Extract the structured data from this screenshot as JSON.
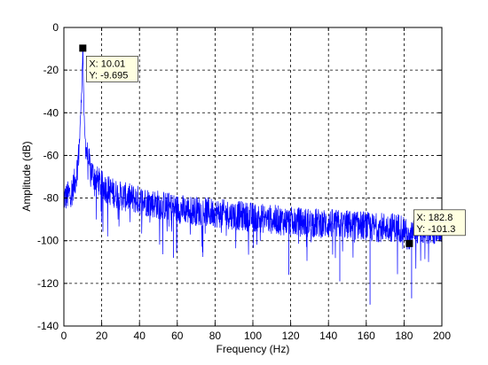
{
  "chart_data": {
    "type": "line",
    "title": "",
    "xlabel": "Frequency (Hz)",
    "ylabel": "Amplitude (dB)",
    "xlim": [
      0,
      200
    ],
    "ylim": [
      -140,
      0
    ],
    "xticks": [
      0,
      20,
      40,
      60,
      80,
      100,
      120,
      140,
      160,
      180,
      200
    ],
    "yticks": [
      0,
      -20,
      -40,
      -60,
      -80,
      -100,
      -120,
      -140
    ],
    "grid": true,
    "grid_style": "dashed",
    "series_color": "#0000ff",
    "series": [
      {
        "x": [
          0,
          2,
          4,
          6,
          7,
          8,
          8.5,
          9,
          9.5,
          10.01,
          10.5,
          11,
          12,
          13,
          14,
          16,
          18,
          20,
          25,
          30,
          35,
          40,
          50,
          60,
          70,
          80,
          90,
          100,
          110,
          120,
          130,
          140,
          150,
          160,
          162,
          170,
          180,
          182.8,
          185,
          190,
          195,
          200
        ],
        "y": [
          -80,
          -79,
          -77,
          -72,
          -66,
          -58,
          -48,
          -38,
          -28,
          -9.695,
          -34,
          -50,
          -58,
          -62,
          -66,
          -70,
          -72,
          -74,
          -77,
          -79,
          -80,
          -81,
          -83,
          -85,
          -86,
          -87,
          -88,
          -89,
          -90,
          -91,
          -91.5,
          -92,
          -92.5,
          -93,
          -94,
          -93.5,
          -94,
          -101.3,
          -94.5,
          -95,
          -95,
          -95
        ]
      }
    ],
    "annotations": [
      {
        "x": 10.01,
        "y": -9.695,
        "label_x": "X: 10.01",
        "label_y": "Y: -9.695"
      },
      {
        "x": 182.8,
        "y": -101.3,
        "label_x": "X: 182.8",
        "label_y": "Y: -101.3"
      }
    ]
  }
}
